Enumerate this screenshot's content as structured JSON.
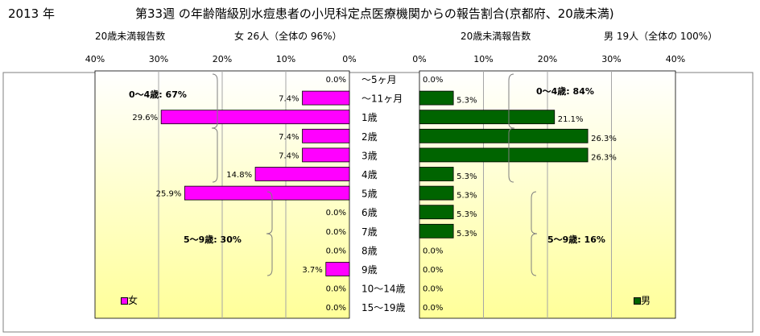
{
  "header": {
    "year": "2013 年",
    "title": "第33週 の年齢階級別水痘患者の小児科定点医療機関からの報告割合(京都府、20歳未満)"
  },
  "female_panel": {
    "caption_left": "20歳未満報告数",
    "caption_right": "女  26人（全体の  96%）",
    "legend": "女",
    "group_0_4": "0～4歳: 67%",
    "group_5_9": "5～9歳: 30%"
  },
  "male_panel": {
    "caption_left": "20歳未満報告数",
    "caption_right": "男  19人（全体の  100%）",
    "legend": "男",
    "group_0_4": "0～4歳: 84%",
    "group_5_9": "5～9歳: 16%"
  },
  "colors": {
    "female": "#ff00ff",
    "male": "#006400",
    "background_light": "#ffffff",
    "background_yellow": "#ffff99"
  },
  "chart_data": [
    {
      "type": "bar",
      "orientation": "horizontal",
      "direction": "right-to-left",
      "categories": [
        "～5ヶ月",
        "～11ヶ月",
        "1歳",
        "2歳",
        "3歳",
        "4歳",
        "5歳",
        "6歳",
        "7歳",
        "8歳",
        "9歳",
        "10～14歳",
        "15～19歳"
      ],
      "series": [
        {
          "name": "女",
          "values": [
            0.0,
            7.4,
            29.6,
            7.4,
            7.4,
            14.8,
            25.9,
            0.0,
            0.0,
            0.0,
            3.7,
            0.0,
            0.0
          ]
        }
      ],
      "value_labels": [
        "0.0%",
        "7.4%",
        "29.6%",
        "7.4%",
        "7.4%",
        "14.8%",
        "25.9%",
        "0.0%",
        "0.0%",
        "0.0%",
        "3.7%",
        "0.0%",
        "0.0%"
      ],
      "xlim": [
        0,
        40
      ],
      "ticks": [
        "40%",
        "30%",
        "20%",
        "10%",
        "0%"
      ],
      "grid": true,
      "legend_position": "bottom-left"
    },
    {
      "type": "bar",
      "orientation": "horizontal",
      "direction": "left-to-right",
      "categories": [
        "～5ヶ月",
        "～11ヶ月",
        "1歳",
        "2歳",
        "3歳",
        "4歳",
        "5歳",
        "6歳",
        "7歳",
        "8歳",
        "9歳",
        "10～14歳",
        "15～19歳"
      ],
      "series": [
        {
          "name": "男",
          "values": [
            0.0,
            5.3,
            21.1,
            26.3,
            26.3,
            5.3,
            5.3,
            5.3,
            5.3,
            0.0,
            0.0,
            0.0,
            0.0
          ]
        }
      ],
      "value_labels": [
        "0.0%",
        "5.3%",
        "21.1%",
        "26.3%",
        "26.3%",
        "5.3%",
        "5.3%",
        "5.3%",
        "5.3%",
        "0.0%",
        "0.0%",
        "0.0%",
        "0.0%"
      ],
      "xlim": [
        0,
        40
      ],
      "ticks": [
        "0%",
        "10%",
        "20%",
        "30%",
        "40%"
      ],
      "grid": true,
      "legend_position": "bottom-right"
    }
  ]
}
